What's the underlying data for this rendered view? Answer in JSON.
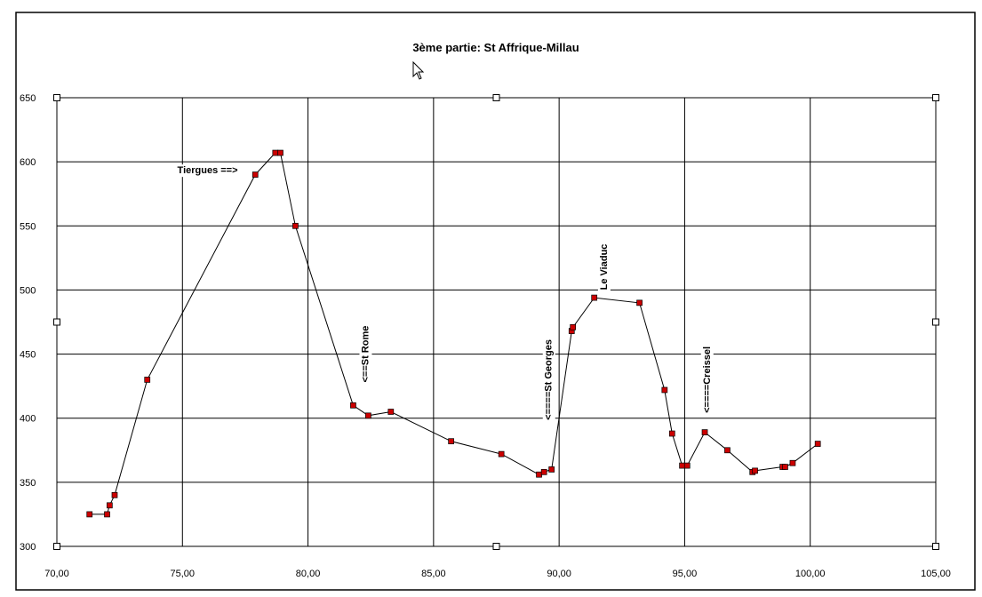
{
  "chart_data": {
    "type": "line",
    "title": "3ème partie: St Affrique-Millau",
    "xlabel": "",
    "ylabel": "",
    "xlim": [
      70,
      105
    ],
    "ylim": [
      300,
      650
    ],
    "xticks": [
      70,
      75,
      80,
      85,
      90,
      95,
      100,
      105
    ],
    "xtick_labels": [
      "70,00",
      "75,00",
      "80,00",
      "85,00",
      "90,00",
      "95,00",
      "100,00",
      "105,00"
    ],
    "yticks": [
      300,
      350,
      400,
      450,
      500,
      550,
      600,
      650
    ],
    "ytick_labels": [
      "300",
      "350",
      "400",
      "450",
      "500",
      "550",
      "600",
      "650"
    ],
    "grid": true,
    "series": [
      {
        "color": "#cc0000",
        "points": [
          [
            71.3,
            325
          ],
          [
            72.0,
            325
          ],
          [
            72.1,
            332
          ],
          [
            72.3,
            340
          ],
          [
            73.6,
            430
          ],
          [
            77.9,
            590
          ],
          [
            78.7,
            607
          ],
          [
            78.9,
            607
          ],
          [
            79.5,
            550
          ],
          [
            81.8,
            410
          ],
          [
            82.4,
            402
          ],
          [
            83.3,
            405
          ],
          [
            85.7,
            382
          ],
          [
            87.7,
            372
          ],
          [
            89.2,
            356
          ],
          [
            89.4,
            358
          ],
          [
            89.7,
            360
          ],
          [
            90.5,
            468
          ],
          [
            90.55,
            471
          ],
          [
            91.4,
            494
          ],
          [
            93.2,
            490
          ],
          [
            94.2,
            422
          ],
          [
            94.5,
            388
          ],
          [
            94.9,
            363
          ],
          [
            95.1,
            363
          ],
          [
            95.8,
            389
          ],
          [
            96.7,
            375
          ],
          [
            97.7,
            358
          ],
          [
            97.8,
            359
          ],
          [
            98.9,
            362
          ],
          [
            99.0,
            362
          ],
          [
            99.3,
            365
          ],
          [
            100.3,
            380
          ]
        ]
      }
    ],
    "annotations": [
      {
        "text": "Tiergues ==>",
        "x": 76.0,
        "y": 593,
        "rotation": 0
      },
      {
        "text": "<==St Rome",
        "x": 82.3,
        "y": 450,
        "rotation": -90
      },
      {
        "text": "<====St Georges",
        "x": 89.6,
        "y": 430,
        "rotation": -90
      },
      {
        "text": "Le Viaduc",
        "x": 91.8,
        "y": 518,
        "rotation": -90
      },
      {
        "text": "<====Creissel",
        "x": 95.9,
        "y": 430,
        "rotation": -90
      }
    ],
    "colors": {
      "line": "#000000",
      "marker": "#cc0000",
      "grid": "#000000"
    }
  }
}
